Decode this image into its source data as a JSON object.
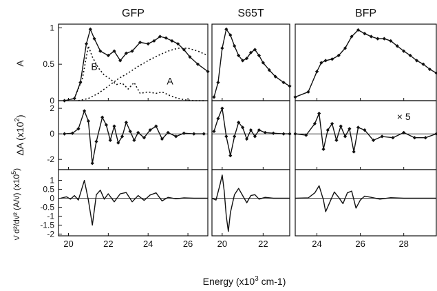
{
  "chart_data": {
    "type": "line",
    "xlabel": "Energy (x10",
    "xlabel_sup": "3",
    "xlabel_tail": " cm-1)",
    "row_labels": [
      {
        "main": "A"
      },
      {
        "main": "ΔA (x10",
        "sup": "2",
        "tail": ")"
      },
      {
        "main": "(x10",
        "sup": "5",
        "tail": ")",
        "prefix": "ν̄ d²/dν̄² (A/ν̄)"
      }
    ],
    "columns": [
      {
        "title": "GFP",
        "xlim": [
          19.5,
          27.0
        ],
        "xticks": [
          "20",
          "22",
          "24",
          "26"
        ],
        "xtick_values": [
          20,
          22,
          24,
          26
        ],
        "annotations": [
          {
            "text": "B",
            "x": 21.3,
            "y": 0.42,
            "panel": 0
          },
          {
            "text": "A",
            "x": 25.1,
            "y": 0.22,
            "panel": 0
          }
        ],
        "panels": [
          {
            "ylim": [
              0,
              1.05
            ],
            "yticks": [
              "0",
              "0.5",
              "1"
            ],
            "ytick_values": [
              0,
              0.5,
              1
            ],
            "series": [
              {
                "style": "solid-markers",
                "x": [
                  19.8,
                  20.3,
                  20.6,
                  20.9,
                  21.1,
                  21.3,
                  21.6,
                  22.0,
                  22.3,
                  22.6,
                  22.9,
                  23.2,
                  23.6,
                  24.0,
                  24.3,
                  24.6,
                  24.9,
                  25.2,
                  25.5,
                  25.8,
                  26.1,
                  26.5,
                  27.0
                ],
                "y": [
                  0.0,
                  0.03,
                  0.25,
                  0.78,
                  0.98,
                  0.85,
                  0.68,
                  0.62,
                  0.68,
                  0.55,
                  0.65,
                  0.68,
                  0.8,
                  0.78,
                  0.82,
                  0.88,
                  0.86,
                  0.82,
                  0.78,
                  0.7,
                  0.6,
                  0.5,
                  0.4
                ]
              },
              {
                "style": "dotted",
                "x": [
                  19.8,
                  20.3,
                  20.7,
                  21.0,
                  21.2,
                  21.5,
                  21.8,
                  22.1,
                  22.4,
                  22.7,
                  23.0,
                  23.3,
                  23.6,
                  24.0,
                  24.4,
                  24.7,
                  25.1,
                  25.5,
                  25.9,
                  26.3,
                  26.8
                ],
                "y": [
                  0,
                  0.03,
                  0.3,
                  0.75,
                  0.6,
                  0.45,
                  0.35,
                  0.3,
                  0.22,
                  0.24,
                  0.16,
                  0.25,
                  0.1,
                  0.12,
                  0.1,
                  0.12,
                  0.07,
                  0.03,
                  0.01,
                  0,
                  0
                ]
              },
              {
                "style": "dotted",
                "x": [
                  20.5,
                  21.0,
                  21.5,
                  22.0,
                  22.5,
                  23.0,
                  23.5,
                  24.0,
                  24.5,
                  25.0,
                  25.5,
                  26.0,
                  26.5,
                  27.0
                ],
                "y": [
                  0,
                  0.03,
                  0.1,
                  0.2,
                  0.3,
                  0.38,
                  0.47,
                  0.55,
                  0.62,
                  0.68,
                  0.72,
                  0.72,
                  0.68,
                  0.62
                ]
              }
            ]
          },
          {
            "ylim": [
              -2.8,
              2.6
            ],
            "yticks": [
              "2",
              "0",
              "-2"
            ],
            "ytick_values": [
              2,
              0,
              -2
            ],
            "series": [
              {
                "style": "solid-markers",
                "x": [
                  19.8,
                  20.2,
                  20.5,
                  20.8,
                  21.0,
                  21.2,
                  21.4,
                  21.7,
                  21.9,
                  22.1,
                  22.3,
                  22.5,
                  22.7,
                  22.9,
                  23.1,
                  23.3,
                  23.5,
                  23.8,
                  24.1,
                  24.4,
                  24.7,
                  25.0,
                  25.4,
                  25.8,
                  26.3,
                  26.8
                ],
                "y": [
                  0,
                  0.05,
                  0.4,
                  1.8,
                  1.0,
                  -2.3,
                  -0.6,
                  1.3,
                  0.7,
                  -0.5,
                  0.6,
                  -0.7,
                  -0.2,
                  0.9,
                  0.2,
                  -0.5,
                  0.1,
                  -0.3,
                  0.3,
                  0.6,
                  -0.4,
                  0.1,
                  -0.2,
                  0.05,
                  0,
                  0
                ]
              }
            ]
          },
          {
            "ylim": [
              -2.1,
              1.6
            ],
            "yticks": [
              "1",
              "0.5",
              "0",
              "-0.5",
              "-1",
              "-1.5",
              "-2"
            ],
            "ytick_values": [
              1,
              0.5,
              0,
              -0.5,
              -1,
              -1.5,
              -2
            ],
            "series": [
              {
                "style": "solid",
                "x": [
                  19.6,
                  19.9,
                  20.1,
                  20.3,
                  20.5,
                  20.8,
                  21.0,
                  21.2,
                  21.4,
                  21.6,
                  21.8,
                  22.0,
                  22.3,
                  22.6,
                  22.9,
                  23.2,
                  23.5,
                  23.8,
                  24.1,
                  24.4,
                  24.7,
                  25.0,
                  25.4,
                  25.8,
                  26.3,
                  27.0
                ],
                "y": [
                  0,
                  0.08,
                  -0.05,
                  0.15,
                  -0.1,
                  1.0,
                  -0.1,
                  -1.5,
                  0.2,
                  0.45,
                  -0.05,
                  0.25,
                  -0.2,
                  0.25,
                  0.32,
                  -0.2,
                  0.15,
                  -0.12,
                  0.18,
                  0.3,
                  -0.15,
                  0.05,
                  -0.03,
                  0.02,
                  0,
                  0
                ]
              }
            ]
          }
        ]
      },
      {
        "title": "S65T",
        "xlim": [
          19.5,
          23.3
        ],
        "xticks": [
          "20",
          "22"
        ],
        "xtick_values": [
          20,
          22
        ],
        "annotations": [],
        "panels": [
          {
            "ylim": [
              0,
              1.05
            ],
            "series": [
              {
                "style": "solid-markers",
                "x": [
                  19.6,
                  19.8,
                  20.0,
                  20.2,
                  20.4,
                  20.6,
                  20.8,
                  21.0,
                  21.2,
                  21.4,
                  21.6,
                  21.8,
                  22.0,
                  22.3,
                  22.6,
                  23.0,
                  23.3
                ],
                "y": [
                  0.05,
                  0.25,
                  0.72,
                  0.98,
                  0.9,
                  0.75,
                  0.62,
                  0.55,
                  0.58,
                  0.66,
                  0.7,
                  0.62,
                  0.52,
                  0.42,
                  0.33,
                  0.25,
                  0.2
                ]
              }
            ]
          },
          {
            "ylim": [
              -2.8,
              2.6
            ],
            "series": [
              {
                "style": "solid-markers",
                "x": [
                  19.6,
                  19.8,
                  20.0,
                  20.2,
                  20.4,
                  20.6,
                  20.8,
                  21.0,
                  21.2,
                  21.4,
                  21.6,
                  21.8,
                  22.1,
                  22.5,
                  23.0,
                  23.3
                ],
                "y": [
                  0.2,
                  1.2,
                  2.0,
                  -0.2,
                  -1.7,
                  -0.2,
                  0.9,
                  0.5,
                  -0.4,
                  0.3,
                  -0.2,
                  0.3,
                  0.1,
                  0.05,
                  0,
                  0
                ]
              }
            ]
          },
          {
            "ylim": [
              -2.1,
              1.6
            ],
            "series": [
              {
                "style": "solid",
                "x": [
                  19.5,
                  19.7,
                  19.9,
                  20.0,
                  20.1,
                  20.2,
                  20.3,
                  20.4,
                  20.6,
                  20.8,
                  21.0,
                  21.2,
                  21.4,
                  21.6,
                  21.8,
                  22.1,
                  22.5,
                  23.0,
                  23.3
                ],
                "y": [
                  0,
                  -0.1,
                  0.8,
                  1.3,
                  0.4,
                  -1.0,
                  -1.85,
                  -0.8,
                  0.2,
                  0.55,
                  0.15,
                  -0.25,
                  0.15,
                  0.2,
                  -0.05,
                  0.05,
                  0,
                  0,
                  0
                ]
              }
            ]
          }
        ]
      },
      {
        "title": "BFP",
        "xlim": [
          23.0,
          29.5
        ],
        "xticks": [
          "24",
          "26",
          "28"
        ],
        "xtick_values": [
          24,
          26,
          28
        ],
        "annotations": [
          {
            "text": "× 5",
            "x": 28.0,
            "y": 1.1,
            "panel": 1
          }
        ],
        "panels": [
          {
            "ylim": [
              0,
              1.05
            ],
            "series": [
              {
                "style": "solid-markers",
                "x": [
                  23.0,
                  23.6,
                  24.0,
                  24.2,
                  24.4,
                  24.7,
                  25.0,
                  25.3,
                  25.6,
                  25.9,
                  26.2,
                  26.5,
                  26.8,
                  27.1,
                  27.4,
                  27.7,
                  28.0,
                  28.3,
                  28.6,
                  28.9,
                  29.2,
                  29.5
                ],
                "y": [
                  0.05,
                  0.12,
                  0.4,
                  0.52,
                  0.55,
                  0.57,
                  0.62,
                  0.72,
                  0.88,
                  0.97,
                  0.92,
                  0.88,
                  0.85,
                  0.85,
                  0.82,
                  0.75,
                  0.68,
                  0.62,
                  0.55,
                  0.5,
                  0.43,
                  0.38
                ]
              }
            ]
          },
          {
            "ylim": [
              -2.8,
              2.6
            ],
            "series": [
              {
                "style": "solid-markers",
                "x": [
                  23.0,
                  23.5,
                  23.9,
                  24.1,
                  24.3,
                  24.5,
                  24.7,
                  24.9,
                  25.1,
                  25.3,
                  25.5,
                  25.7,
                  25.9,
                  26.2,
                  26.6,
                  27.0,
                  27.5,
                  28.0,
                  28.5,
                  29.0,
                  29.5
                ],
                "y": [
                  0,
                  -0.1,
                  0.8,
                  1.6,
                  -1.2,
                  0.3,
                  0.8,
                  -0.5,
                  0.6,
                  -0.2,
                  0.4,
                  -1.4,
                  0.5,
                  0.3,
                  -0.5,
                  -0.2,
                  -0.3,
                  0.1,
                  -0.3,
                  -0.3,
                  0
                ]
              }
            ]
          },
          {
            "ylim": [
              -2.1,
              1.6
            ],
            "series": [
              {
                "style": "solid",
                "x": [
                  23.0,
                  23.6,
                  23.9,
                  24.1,
                  24.3,
                  24.4,
                  24.6,
                  24.8,
                  25.0,
                  25.2,
                  25.4,
                  25.6,
                  25.8,
                  26.0,
                  26.2,
                  26.5,
                  26.9,
                  27.4,
                  28.0,
                  29.0,
                  29.5
                ],
                "y": [
                  0,
                  0.02,
                  0.3,
                  0.7,
                  -0.1,
                  -0.75,
                  -0.2,
                  0.35,
                  0.05,
                  -0.3,
                  0.3,
                  0.4,
                  -0.55,
                  -0.1,
                  0.12,
                  0.05,
                  -0.05,
                  0.03,
                  0,
                  0,
                  0
                ]
              }
            ]
          }
        ]
      }
    ]
  }
}
